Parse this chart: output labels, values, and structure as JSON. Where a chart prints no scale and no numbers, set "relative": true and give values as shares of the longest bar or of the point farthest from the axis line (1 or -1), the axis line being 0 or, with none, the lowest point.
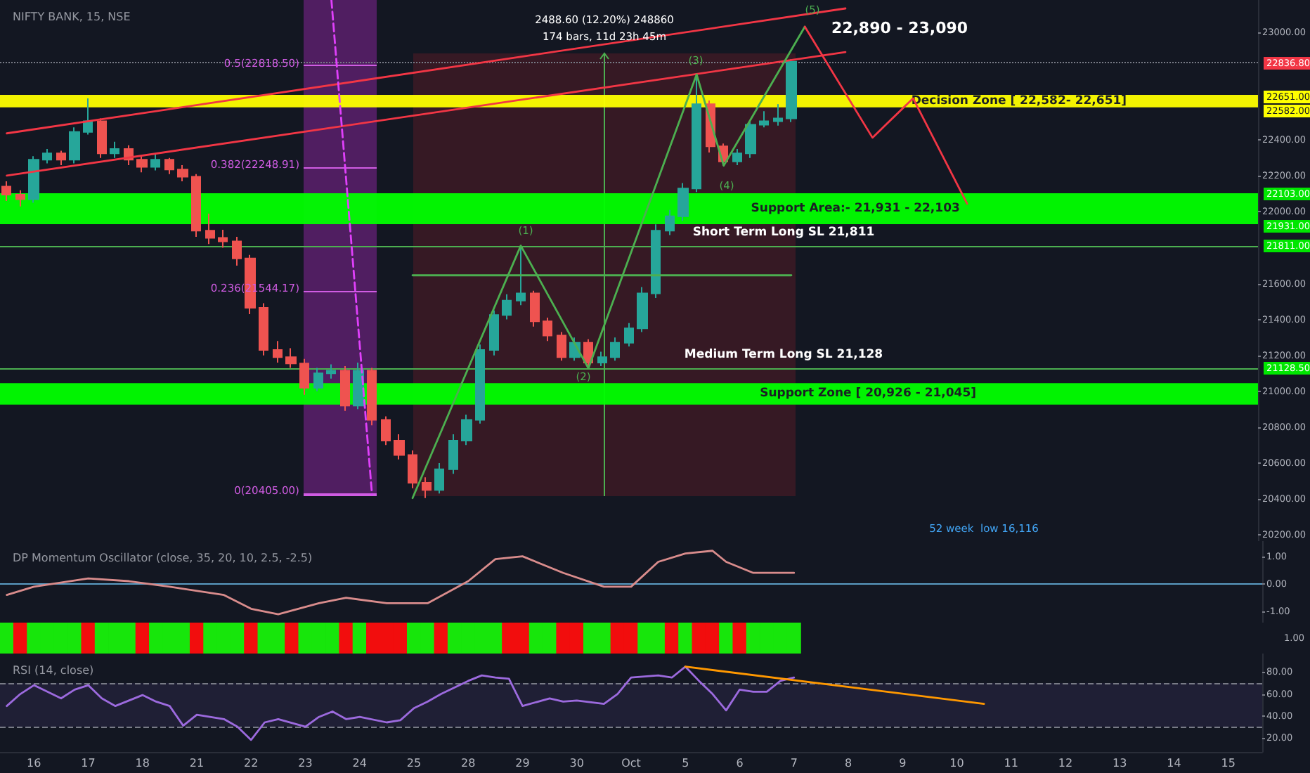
{
  "chart_data": [
    {
      "type": "candlestick",
      "title": "NIFTY BANK, 15, NSE",
      "tick_labels": "y",
      "ylim": [
        20165,
        23180
      ],
      "yticks": [
        {
          "value": 20200,
          "label": "20200.00"
        },
        {
          "value": 20400,
          "label": "20400.00"
        },
        {
          "value": 20600,
          "label": "20600.00"
        },
        {
          "value": 20800,
          "label": "20800.00"
        },
        {
          "value": 21000,
          "label": "21000.00"
        },
        {
          "value": 21200,
          "label": "21200.00"
        },
        {
          "value": 21400,
          "label": "21400.00"
        },
        {
          "value": 21600,
          "label": "21600.00"
        },
        {
          "value": 22000,
          "label": "22000.00"
        },
        {
          "value": 22200,
          "label": "22200.00"
        },
        {
          "value": 22400,
          "label": "22400.00"
        },
        {
          "value": 23000,
          "label": "23000.00"
        }
      ],
      "categories": [
        null,
        null,
        null,
        null,
        null,
        null,
        null,
        null,
        null,
        null,
        null,
        null,
        null,
        null,
        null,
        null,
        null,
        null,
        null,
        null,
        null,
        null,
        null,
        null,
        null,
        null,
        null,
        null,
        null,
        null,
        null,
        null,
        null,
        null,
        null,
        null,
        null,
        null,
        null,
        null,
        null,
        null,
        null,
        null,
        null,
        null,
        null,
        null,
        null,
        null,
        null,
        null,
        null,
        null,
        null,
        null,
        null,
        null,
        null,
        null,
        null,
        null,
        null,
        null,
        null,
        null,
        null,
        null,
        null,
        null,
        null,
        null,
        null,
        null,
        null,
        null,
        null,
        null,
        null,
        null,
        null,
        null,
        null,
        null,
        null,
        null,
        null,
        null,
        null,
        null,
        null,
        null,
        null
      ],
      "ohlc": [
        [
          22140,
          22170,
          22060,
          22095
        ],
        [
          22095,
          22120,
          22030,
          22070
        ],
        [
          22070,
          22310,
          22050,
          22290
        ],
        [
          22290,
          22350,
          22270,
          22325
        ],
        [
          22325,
          22340,
          22260,
          22290
        ],
        [
          22290,
          22470,
          22270,
          22445
        ],
        [
          22445,
          22632,
          22430,
          22505
        ],
        [
          22505,
          22520,
          22300,
          22325
        ],
        [
          22325,
          22390,
          22300,
          22350
        ],
        [
          22350,
          22370,
          22260,
          22290
        ],
        [
          22290,
          22310,
          22220,
          22250
        ],
        [
          22250,
          22320,
          22230,
          22290
        ],
        [
          22290,
          22300,
          22210,
          22235
        ],
        [
          22235,
          22260,
          22170,
          22195
        ],
        [
          22195,
          22210,
          21860,
          21895
        ],
        [
          21895,
          21990,
          21820,
          21855
        ],
        [
          21855,
          21900,
          21800,
          21835
        ],
        [
          21835,
          21860,
          21700,
          21740
        ],
        [
          21740,
          21760,
          21430,
          21465
        ],
        [
          21465,
          21490,
          21200,
          21230
        ],
        [
          21230,
          21280,
          21160,
          21190
        ],
        [
          21190,
          21240,
          21130,
          21155
        ],
        [
          21155,
          21180,
          20980,
          21020
        ],
        [
          21020,
          21130,
          21000,
          21100
        ],
        [
          21100,
          21150,
          21070,
          21115
        ],
        [
          21115,
          21140,
          20890,
          20920
        ],
        [
          20920,
          21160,
          20900,
          21115
        ],
        [
          21115,
          21130,
          20810,
          20840
        ],
        [
          20840,
          20860,
          20700,
          20725
        ],
        [
          20725,
          20760,
          20620,
          20645
        ],
        [
          20645,
          20670,
          20460,
          20490
        ],
        [
          20490,
          20520,
          20405,
          20450
        ],
        [
          20450,
          20600,
          20430,
          20565
        ],
        [
          20565,
          20760,
          20540,
          20725
        ],
        [
          20725,
          20870,
          20700,
          20840
        ],
        [
          20840,
          21260,
          20820,
          21230
        ],
        [
          21230,
          21450,
          21200,
          21425
        ],
        [
          21425,
          21540,
          21400,
          21505
        ],
        [
          21505,
          21811,
          21480,
          21545
        ],
        [
          21545,
          21560,
          21360,
          21390
        ],
        [
          21390,
          21410,
          21280,
          21310
        ],
        [
          21310,
          21330,
          21170,
          21190
        ],
        [
          21190,
          21300,
          21170,
          21270
        ],
        [
          21270,
          21290,
          21128,
          21160
        ],
        [
          21160,
          21220,
          21140,
          21190
        ],
        [
          21190,
          21300,
          21170,
          21270
        ],
        [
          21270,
          21380,
          21250,
          21350
        ],
        [
          21350,
          21580,
          21330,
          21545
        ],
        [
          21545,
          21930,
          21520,
          21895
        ],
        [
          21895,
          22010,
          21870,
          21975
        ],
        [
          21975,
          22160,
          21950,
          22130
        ],
        [
          22130,
          22765,
          22110,
          22600
        ],
        [
          22600,
          22620,
          22330,
          22365
        ],
        [
          22365,
          22380,
          22257,
          22280
        ],
        [
          22280,
          22350,
          22260,
          22325
        ],
        [
          22325,
          22510,
          22300,
          22485
        ],
        [
          22485,
          22560,
          22470,
          22505
        ],
        [
          22505,
          22600,
          22480,
          22520
        ],
        [
          22520,
          22850,
          22500,
          22836.8
        ],
        null,
        null,
        null,
        null,
        null,
        null,
        null,
        null,
        null,
        null,
        null,
        null,
        null,
        null,
        null,
        null,
        null,
        null,
        null,
        null,
        null,
        null,
        null,
        null,
        null,
        null,
        null,
        null,
        null,
        null,
        null,
        null,
        null,
        null
      ],
      "colors": [
        "#ef5350",
        "#ef5350",
        "#26a69a",
        "#26a69a",
        "#ef5350",
        "#26a69a",
        "#26a69a",
        "#ef5350",
        "#26a69a",
        "#ef5350",
        "#ef5350",
        "#26a69a",
        "#ef5350",
        "#ef5350",
        "#ef5350",
        "#ef5350",
        "#ef5350",
        "#ef5350",
        "#ef5350",
        "#ef5350",
        "#ef5350",
        "#ef5350",
        "#ef5350",
        "#26a69a",
        "#26a69a",
        "#ef5350",
        "#26a69a",
        "#ef5350",
        "#ef5350",
        "#ef5350",
        "#ef5350",
        "#ef5350",
        "#26a69a",
        "#26a69a",
        "#26a69a",
        "#26a69a",
        "#26a69a",
        "#26a69a",
        "#26a69a",
        "#ef5350",
        "#ef5350",
        "#ef5350",
        "#26a69a",
        "#ef5350",
        "#26a69a",
        "#26a69a",
        "#26a69a",
        "#26a69a",
        "#26a69a",
        "#26a69a",
        "#26a69a",
        "#26a69a",
        "#ef5350",
        "#ef5350",
        "#26a69a",
        "#26a69a",
        "#26a69a",
        "#26a69a",
        "#26a69a",
        null,
        null,
        null,
        null,
        null,
        null,
        null,
        null,
        null,
        null,
        null,
        null,
        null,
        null,
        null,
        null,
        null,
        null,
        null,
        null,
        null,
        null,
        null,
        null,
        null,
        null,
        null,
        null,
        null,
        null,
        null,
        null,
        null,
        null
      ],
      "series": [
        {
          "type": "line",
          "color": "#f23645",
          "values": [
            22437,
            null,
            null,
            null,
            null,
            null,
            null,
            null,
            null,
            null,
            null,
            null,
            null,
            null,
            null,
            null,
            null,
            null,
            null,
            null,
            null,
            null,
            null,
            null,
            null,
            null,
            null,
            null,
            null,
            null,
            null,
            null,
            null,
            null,
            null,
            null,
            null,
            null,
            null,
            null,
            null,
            null,
            null,
            null,
            null,
            null,
            null,
            null,
            null,
            null,
            null,
            null,
            null,
            null,
            null,
            null,
            null,
            null,
            null,
            null,
            null,
            null,
            23133,
            null,
            null,
            null,
            null,
            null,
            null,
            null,
            null,
            null,
            null,
            null,
            null,
            null,
            null,
            null,
            null,
            null,
            null,
            null,
            null,
            null,
            null,
            null,
            null,
            null,
            null,
            null,
            null,
            null,
            null
          ]
        },
        {
          "type": "line",
          "color": "#f23645",
          "values": [
            22202,
            null,
            null,
            null,
            null,
            null,
            null,
            null,
            null,
            null,
            null,
            null,
            null,
            null,
            null,
            null,
            null,
            null,
            null,
            null,
            null,
            null,
            null,
            null,
            null,
            null,
            null,
            null,
            null,
            null,
            null,
            null,
            null,
            null,
            null,
            null,
            null,
            null,
            null,
            null,
            null,
            null,
            null,
            null,
            null,
            null,
            null,
            null,
            null,
            null,
            null,
            null,
            null,
            null,
            null,
            null,
            null,
            null,
            null,
            null,
            null,
            null,
            22890,
            null,
            null,
            null,
            null,
            null,
            null,
            null,
            null,
            null,
            null,
            null,
            null,
            null,
            null,
            null,
            null,
            null,
            null,
            null,
            null,
            null,
            null,
            null,
            null,
            null,
            null,
            null,
            null,
            null,
            null
          ]
        },
        {
          "type": "line",
          "color": "#4caf50",
          "values": [
            null,
            null,
            null,
            null,
            null,
            null,
            null,
            null,
            null,
            null,
            null,
            null,
            null,
            null,
            null,
            null,
            null,
            null,
            null,
            null,
            null,
            null,
            null,
            null,
            null,
            null,
            null,
            null,
            null,
            null,
            20405,
            null,
            null,
            null,
            null,
            null,
            null,
            null,
            21811,
            null,
            null,
            null,
            null,
            21128,
            null,
            null,
            null,
            null,
            null,
            null,
            null,
            22765,
            null,
            22257,
            null,
            null,
            null,
            null,
            null,
            23031,
            null,
            null,
            null,
            null,
            null,
            null,
            null,
            null,
            null,
            null,
            null,
            null,
            null,
            null,
            null,
            null,
            null,
            null,
            null,
            null,
            null,
            null,
            null,
            null,
            null,
            null,
            null,
            null,
            null,
            null,
            null,
            null,
            null
          ]
        },
        {
          "type": "line",
          "color": "#f23645",
          "values": [
            null,
            null,
            null,
            null,
            null,
            null,
            null,
            null,
            null,
            null,
            null,
            null,
            null,
            null,
            null,
            null,
            null,
            null,
            null,
            null,
            null,
            null,
            null,
            null,
            null,
            null,
            null,
            null,
            null,
            null,
            null,
            null,
            null,
            null,
            null,
            null,
            null,
            null,
            null,
            null,
            null,
            null,
            null,
            null,
            null,
            null,
            null,
            null,
            null,
            null,
            null,
            null,
            null,
            null,
            null,
            null,
            null,
            null,
            null,
            23031,
            null,
            null,
            null,
            null,
            22413,
            null,
            null,
            22632,
            null,
            null,
            null,
            22045,
            null,
            null,
            null,
            null,
            null,
            null,
            null,
            null,
            null,
            null,
            null,
            null,
            null,
            null,
            null,
            null,
            null,
            null,
            null,
            null,
            null
          ]
        },
        {
          "type": "line",
          "color": "#e040fb",
          "line_style": "dashed",
          "values": [
            null,
            null,
            null,
            null,
            null,
            null,
            null,
            null,
            null,
            null,
            null,
            null,
            null,
            null,
            null,
            null,
            null,
            null,
            null,
            null,
            null,
            null,
            null,
            null,
            23180,
            null,
            null,
            20426,
            null,
            null,
            null,
            null,
            null,
            null,
            null,
            null,
            null,
            null,
            null,
            null,
            null,
            null,
            null,
            null,
            null,
            null,
            null,
            null,
            null,
            null,
            null,
            null,
            null,
            null,
            null,
            null,
            null,
            null,
            null,
            null,
            null,
            null,
            null,
            null,
            null,
            null,
            null,
            null,
            null,
            null,
            null,
            null,
            null,
            null,
            null,
            null,
            null,
            null,
            null,
            null,
            null,
            null,
            null,
            null,
            null,
            null,
            null,
            null,
            null,
            null,
            null,
            null,
            null
          ]
        },
        {
          "type": "line",
          "color": "#4caf50",
          "values": [
            null,
            null,
            null,
            null,
            null,
            null,
            null,
            null,
            null,
            null,
            null,
            null,
            null,
            null,
            null,
            null,
            null,
            null,
            null,
            null,
            null,
            null,
            null,
            null,
            null,
            null,
            null,
            null,
            null,
            null,
            21646,
            null,
            null,
            null,
            null,
            null,
            null,
            null,
            null,
            null,
            null,
            null,
            null,
            null,
            null,
            null,
            null,
            null,
            null,
            null,
            null,
            null,
            null,
            null,
            null,
            null,
            null,
            null,
            21646,
            null,
            null,
            null,
            null,
            null,
            null,
            null,
            null,
            null,
            null,
            null,
            null,
            null,
            null,
            null,
            null,
            null,
            null,
            null,
            null,
            null,
            null,
            null,
            null,
            null,
            null,
            null,
            null,
            null,
            null,
            null,
            null,
            null,
            null
          ]
        }
      ],
      "bands": [
        {
          "axis": "y",
          "from": 22582,
          "to": 22651,
          "color": "#ffff00",
          "label": "Decision Zone [ 22,582- 22,651]"
        },
        {
          "axis": "y",
          "from": 21931,
          "to": 22103,
          "color": "#00ff00",
          "label": "Support Area:- 21,931 - 22,103"
        },
        {
          "axis": "y",
          "from": 20926,
          "to": 21045,
          "color": "#00ff00",
          "label": "Support Zone [ 20,926 - 21,045]"
        }
      ],
      "ref_lines": [
        {
          "axis": "y",
          "value": 22836.8,
          "color": "#787b86",
          "line_style": "dotted"
        },
        {
          "axis": "y",
          "value": 21811,
          "color": "#4caf50",
          "label": "Short Term Long SL 21,811"
        },
        {
          "axis": "y",
          "value": 21128,
          "color": "#4caf50",
          "label": "Medium Term Long SL 21,128"
        }
      ],
      "annotations": [
        "2488.60 (12.20%) 248860",
        "174 bars, 11d 23h 45m",
        "0.5(22818.50)",
        "0.382(22248.91)",
        "0.236(21544.17)",
        "0(20405.00)",
        "(1)",
        "(2)",
        "(3)",
        "(4)",
        "(5)",
        "22,890 - 23,090",
        "52 week  low 16,116",
        "22836.80",
        "22651.00",
        "22582.00",
        "22103.00",
        "21931.00",
        "21811.00",
        "21128.50"
      ]
    },
    {
      "type": "line",
      "title": "DP Momentum Oscillator (close, 35, 20, 10, 2.5, -2.5)",
      "tick_labels": "y",
      "ylim": [
        -1.4,
        1.55
      ],
      "yticks": [
        {
          "value": -1,
          "label": "-1.00"
        },
        {
          "value": 0,
          "label": "0.00"
        },
        {
          "value": 1,
          "label": "1.00"
        }
      ],
      "color": "#d98c8c",
      "categories": [
        null,
        null,
        null,
        null,
        null,
        null,
        null,
        null,
        null,
        null,
        null,
        null,
        null,
        null,
        null,
        null,
        null,
        null,
        null,
        null,
        null,
        null,
        null,
        null,
        null,
        null,
        null,
        null,
        null,
        null,
        null,
        null,
        null,
        null,
        null,
        null,
        null,
        null,
        null,
        null,
        null,
        null,
        null,
        null,
        null,
        null,
        null,
        null,
        null,
        null,
        null,
        null,
        null,
        null,
        null,
        null,
        null,
        null,
        null,
        null,
        null,
        null,
        null,
        null,
        null,
        null,
        null,
        null,
        null,
        null,
        null,
        null,
        null,
        null,
        null,
        null,
        null,
        null,
        null,
        null,
        null,
        null,
        null,
        null,
        null,
        null,
        null,
        null,
        null,
        null,
        null,
        null,
        null
      ],
      "values": [
        -0.4,
        null,
        -0.1,
        null,
        null,
        null,
        0.2,
        null,
        null,
        0.1,
        null,
        null,
        -0.1,
        null,
        null,
        null,
        -0.4,
        null,
        -0.9,
        null,
        -1.1,
        null,
        null,
        -0.7,
        null,
        -0.5,
        null,
        null,
        -0.7,
        null,
        null,
        -0.7,
        null,
        null,
        0.1,
        null,
        0.9,
        null,
        1.0,
        null,
        null,
        0.4,
        null,
        null,
        -0.1,
        null,
        -0.1,
        null,
        0.8,
        null,
        1.1,
        null,
        1.2,
        0.8,
        null,
        0.4,
        null,
        null,
        0.4,
        null,
        null,
        null,
        null,
        null,
        null,
        null,
        null,
        null,
        null,
        null,
        null,
        null,
        null,
        null,
        null,
        null,
        null,
        null,
        null,
        null,
        null,
        null,
        null,
        null,
        null,
        null,
        null,
        null,
        null,
        null,
        null,
        null,
        null
      ],
      "ref_lines": [
        {
          "axis": "y",
          "value": 0,
          "color": "#5b9cc4"
        }
      ]
    },
    {
      "type": "bar",
      "relative": true,
      "tick_labels": false,
      "categories": [
        null,
        null,
        null,
        null,
        null,
        null,
        null,
        null,
        null,
        null,
        null,
        null,
        null,
        null,
        null,
        null,
        null,
        null,
        null,
        null,
        null,
        null,
        null,
        null,
        null,
        null,
        null,
        null,
        null,
        null,
        null,
        null,
        null,
        null,
        null,
        null,
        null,
        null,
        null,
        null,
        null,
        null,
        null,
        null,
        null,
        null,
        null,
        null,
        null,
        null,
        null,
        null,
        null,
        null,
        null,
        null,
        null,
        null,
        null,
        null,
        null,
        null,
        null,
        null,
        null,
        null,
        null,
        null,
        null,
        null,
        null,
        null,
        null,
        null,
        null,
        null,
        null,
        null,
        null,
        null,
        null,
        null,
        null,
        null,
        null,
        null,
        null,
        null,
        null,
        null,
        null,
        null,
        null
      ],
      "values": [
        1,
        1,
        1,
        1,
        1,
        1,
        1,
        1,
        1,
        1,
        1,
        1,
        1,
        1,
        1,
        1,
        1,
        1,
        1,
        1,
        1,
        1,
        1,
        1,
        1,
        1,
        1,
        1,
        1,
        1,
        1,
        1,
        1,
        1,
        1,
        1,
        1,
        1,
        1,
        1,
        1,
        1,
        1,
        1,
        1,
        1,
        1,
        1,
        1,
        1,
        1,
        1,
        1,
        1,
        1,
        1,
        1,
        1,
        1,
        null,
        null,
        null,
        null,
        null,
        null,
        null,
        null,
        null,
        null,
        null,
        null,
        null,
        null,
        null,
        null,
        null,
        null,
        null,
        null,
        null,
        null,
        null,
        null,
        null,
        null,
        null,
        null,
        null,
        null,
        null,
        null,
        null,
        null
      ],
      "colors": [
        "#17e60b",
        "#f20d0d",
        "#17e60b",
        "#17e60b",
        "#17e60b",
        "#17e60b",
        "#f20d0d",
        "#17e60b",
        "#17e60b",
        "#17e60b",
        "#f20d0d",
        "#17e60b",
        "#17e60b",
        "#17e60b",
        "#f20d0d",
        "#17e60b",
        "#17e60b",
        "#17e60b",
        "#f20d0d",
        "#17e60b",
        "#17e60b",
        "#f20d0d",
        "#17e60b",
        "#17e60b",
        "#17e60b",
        "#f20d0d",
        "#17e60b",
        "#f20d0d",
        "#f20d0d",
        "#f20d0d",
        "#17e60b",
        "#17e60b",
        "#f20d0d",
        "#17e60b",
        "#17e60b",
        "#17e60b",
        "#17e60b",
        "#f20d0d",
        "#f20d0d",
        "#17e60b",
        "#17e60b",
        "#f20d0d",
        "#f20d0d",
        "#17e60b",
        "#17e60b",
        "#f20d0d",
        "#f20d0d",
        "#17e60b",
        "#17e60b",
        "#f20d0d",
        "#17e60b",
        "#f20d0d",
        "#f20d0d",
        "#17e60b",
        "#f20d0d",
        "#17e60b",
        "#17e60b",
        "#17e60b",
        "#17e60b",
        null,
        null,
        null,
        null,
        null,
        null,
        null,
        null,
        null,
        null,
        null,
        null,
        null,
        null,
        null,
        null,
        null,
        null,
        null,
        null,
        null,
        null,
        null,
        null,
        null,
        null,
        null,
        null,
        null,
        null,
        null,
        null,
        null,
        null
      ],
      "annotations": [
        "1.00"
      ]
    },
    {
      "type": "line",
      "title": "RSI (14, close)",
      "ylim": [
        7,
        97
      ],
      "categories": [
        null,
        null,
        "16",
        null,
        null,
        null,
        "17",
        null,
        null,
        null,
        "18",
        null,
        null,
        null,
        "21",
        null,
        null,
        null,
        "22",
        null,
        null,
        null,
        "23",
        null,
        null,
        null,
        "24",
        null,
        null,
        null,
        "25",
        null,
        null,
        null,
        "28",
        null,
        null,
        null,
        "29",
        null,
        null,
        null,
        "30",
        null,
        null,
        null,
        "Oct",
        null,
        null,
        null,
        "5",
        null,
        null,
        null,
        "6",
        null,
        null,
        null,
        "7",
        null,
        null,
        null,
        "8",
        null,
        null,
        null,
        "9",
        null,
        null,
        null,
        "10",
        null,
        null,
        null,
        "11",
        null,
        null,
        null,
        "12",
        null,
        null,
        null,
        "13",
        null,
        null,
        null,
        "14",
        null,
        null,
        null,
        "15",
        null,
        null
      ],
      "yticks": [
        {
          "value": 20,
          "label": "20.00"
        },
        {
          "value": 40,
          "label": "40.00"
        },
        {
          "value": 60,
          "label": "60.00"
        },
        {
          "value": 80,
          "label": "80.00"
        }
      ],
      "series": [
        {
          "color": "#9c6ade",
          "values": [
            49,
            60,
            68,
            null,
            56,
            64,
            68,
            56,
            49,
            null,
            59,
            53,
            49,
            31,
            41,
            null,
            37,
            30,
            18,
            34,
            37,
            null,
            30,
            39,
            44,
            37,
            39,
            null,
            34,
            36,
            47,
            53,
            60,
            null,
            72,
            77,
            75,
            74,
            49,
            null,
            56,
            53,
            54,
            null,
            51,
            60,
            75,
            null,
            77,
            75,
            85,
            72,
            60,
            45,
            64,
            62,
            62,
            72,
            75,
            null,
            null,
            null,
            null,
            null,
            null,
            null,
            null,
            null,
            null,
            null,
            null,
            null,
            null,
            null,
            null,
            null,
            null,
            null,
            null,
            null,
            null,
            null,
            null,
            null,
            null,
            null,
            null,
            null,
            null,
            null,
            null,
            null,
            null
          ]
        },
        {
          "color": "#ff9800",
          "values": [
            null,
            null,
            null,
            null,
            null,
            null,
            null,
            null,
            null,
            null,
            null,
            null,
            null,
            null,
            null,
            null,
            null,
            null,
            null,
            null,
            null,
            null,
            null,
            null,
            null,
            null,
            null,
            null,
            null,
            null,
            null,
            null,
            null,
            null,
            null,
            null,
            null,
            null,
            null,
            null,
            null,
            null,
            null,
            null,
            null,
            null,
            null,
            null,
            null,
            null,
            85,
            null,
            null,
            null,
            null,
            null,
            null,
            null,
            null,
            null,
            null,
            null,
            null,
            null,
            null,
            null,
            null,
            null,
            null,
            null,
            null,
            null,
            51,
            null,
            null,
            null,
            null,
            null,
            null,
            null,
            null,
            null,
            null,
            null,
            null,
            null,
            null,
            null,
            null,
            null,
            null,
            null,
            null
          ]
        }
      ],
      "bands": [
        {
          "axis": "y",
          "from": 30,
          "to": 70,
          "color": "#7e57c2"
        }
      ],
      "ref_lines": [
        {
          "axis": "y",
          "value": 70,
          "color": "#787b86",
          "line_style": "dashed"
        },
        {
          "axis": "y",
          "value": 30,
          "color": "#787b86",
          "line_style": "dashed"
        }
      ]
    }
  ]
}
